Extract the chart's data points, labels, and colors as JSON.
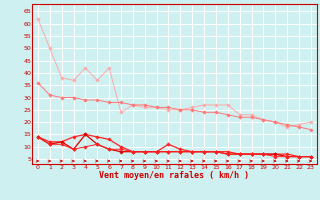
{
  "title": "",
  "xlabel": "Vent moyen/en rafales ( km/h )",
  "ylabel": "",
  "bg_color": "#cff0f0",
  "grid_color": "#ffffff",
  "x": [
    0,
    1,
    2,
    3,
    4,
    5,
    6,
    7,
    8,
    9,
    10,
    11,
    12,
    13,
    14,
    15,
    16,
    17,
    18,
    19,
    20,
    21,
    22,
    23
  ],
  "series": [
    {
      "color": "#ffaaaa",
      "values": [
        62,
        50,
        38,
        37,
        42,
        37,
        42,
        24,
        27,
        26,
        26,
        25,
        25,
        26,
        27,
        27,
        27,
        23,
        23,
        21,
        20,
        18,
        19,
        20
      ]
    },
    {
      "color": "#ff7777",
      "values": [
        36,
        31,
        30,
        30,
        29,
        29,
        28,
        28,
        27,
        27,
        26,
        26,
        25,
        25,
        24,
        24,
        23,
        22,
        22,
        21,
        20,
        19,
        18,
        17
      ]
    },
    {
      "color": "#ff2222",
      "values": [
        14,
        12,
        12,
        14,
        15,
        14,
        13,
        10,
        8,
        8,
        8,
        11,
        9,
        8,
        8,
        8,
        8,
        7,
        7,
        7,
        7,
        7,
        6,
        6
      ]
    },
    {
      "color": "#dd0000",
      "values": [
        14,
        11,
        12,
        9,
        15,
        11,
        9,
        8,
        8,
        8,
        8,
        8,
        8,
        8,
        8,
        8,
        7,
        7,
        7,
        7,
        7,
        6,
        6,
        6
      ]
    },
    {
      "color": "#ff2222",
      "values": [
        14,
        11,
        11,
        9,
        10,
        11,
        9,
        9,
        8,
        8,
        8,
        8,
        8,
        8,
        8,
        8,
        7,
        7,
        7,
        7,
        6,
        6,
        6,
        6
      ]
    }
  ],
  "ylim": [
    3,
    68
  ],
  "yticks": [
    5,
    10,
    15,
    20,
    25,
    30,
    35,
    40,
    45,
    50,
    55,
    60,
    65
  ],
  "xlim": [
    0,
    23
  ],
  "xticks": [
    0,
    1,
    2,
    3,
    4,
    5,
    6,
    7,
    8,
    9,
    10,
    11,
    12,
    13,
    14,
    15,
    16,
    17,
    18,
    19,
    20,
    21,
    22,
    23
  ],
  "tick_color": "#cc0000",
  "spine_color": "#cc0000",
  "arrow_color": "#cc0000",
  "xlabel_color": "#cc0000",
  "xlabel_fontsize": 6,
  "tick_fontsize": 4.5
}
